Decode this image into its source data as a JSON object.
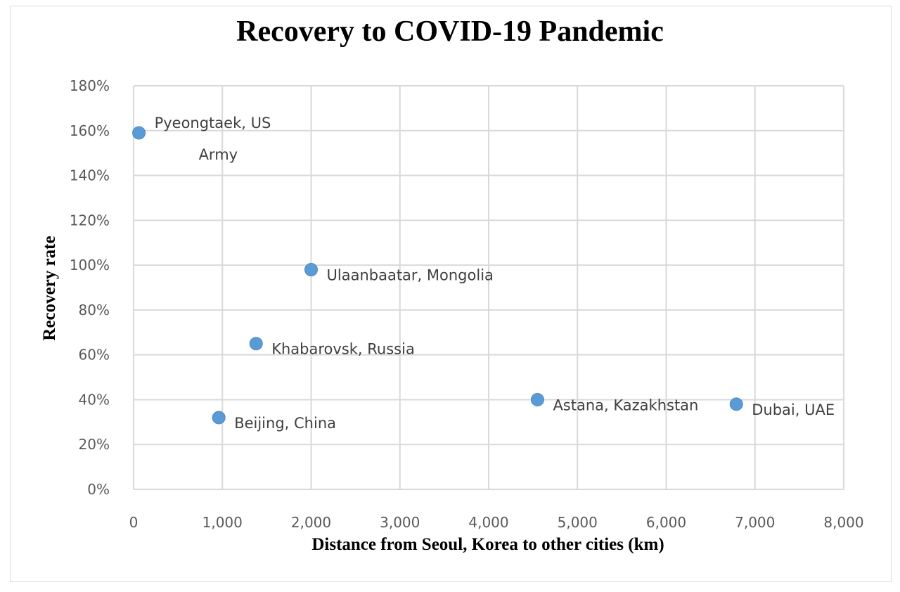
{
  "chart_data": {
    "type": "scatter",
    "title": "Recovery to COVID-19 Pandemic",
    "xlabel": "Distance from Seoul, Korea to other cities (km)",
    "ylabel": "Recovery rate",
    "xlim": [
      0,
      8000
    ],
    "ylim": [
      0,
      1.8
    ],
    "x_ticks": [
      "0",
      "1,000",
      "2,000",
      "3,000",
      "4,000",
      "5,000",
      "6,000",
      "7,000",
      "8,000"
    ],
    "y_ticks": [
      "0%",
      "20%",
      "40%",
      "60%",
      "80%",
      "100%",
      "120%",
      "140%",
      "160%",
      "180%"
    ],
    "grid": true,
    "marker_color": "#5b9bd5",
    "points": [
      {
        "label": "Pyeongtaek, US Army",
        "label_lines": [
          "Pyeongtaek, US",
          "Army"
        ],
        "x": 60,
        "y": 1.59
      },
      {
        "label": "Ulaanbaatar, Mongolia",
        "label_lines": [
          "Ulaanbaatar, Mongolia"
        ],
        "x": 2000,
        "y": 0.98
      },
      {
        "label": "Khabarovsk, Russia",
        "label_lines": [
          "Khabarovsk, Russia"
        ],
        "x": 1380,
        "y": 0.65
      },
      {
        "label": "Beijing, China",
        "label_lines": [
          "Beijing, China"
        ],
        "x": 960,
        "y": 0.32
      },
      {
        "label": "Astana, Kazakhstan",
        "label_lines": [
          "Astana, Kazakhstan"
        ],
        "x": 4550,
        "y": 0.4
      },
      {
        "label": "Dubai, UAE",
        "label_lines": [
          "Dubai, UAE"
        ],
        "x": 6790,
        "y": 0.38
      }
    ]
  }
}
